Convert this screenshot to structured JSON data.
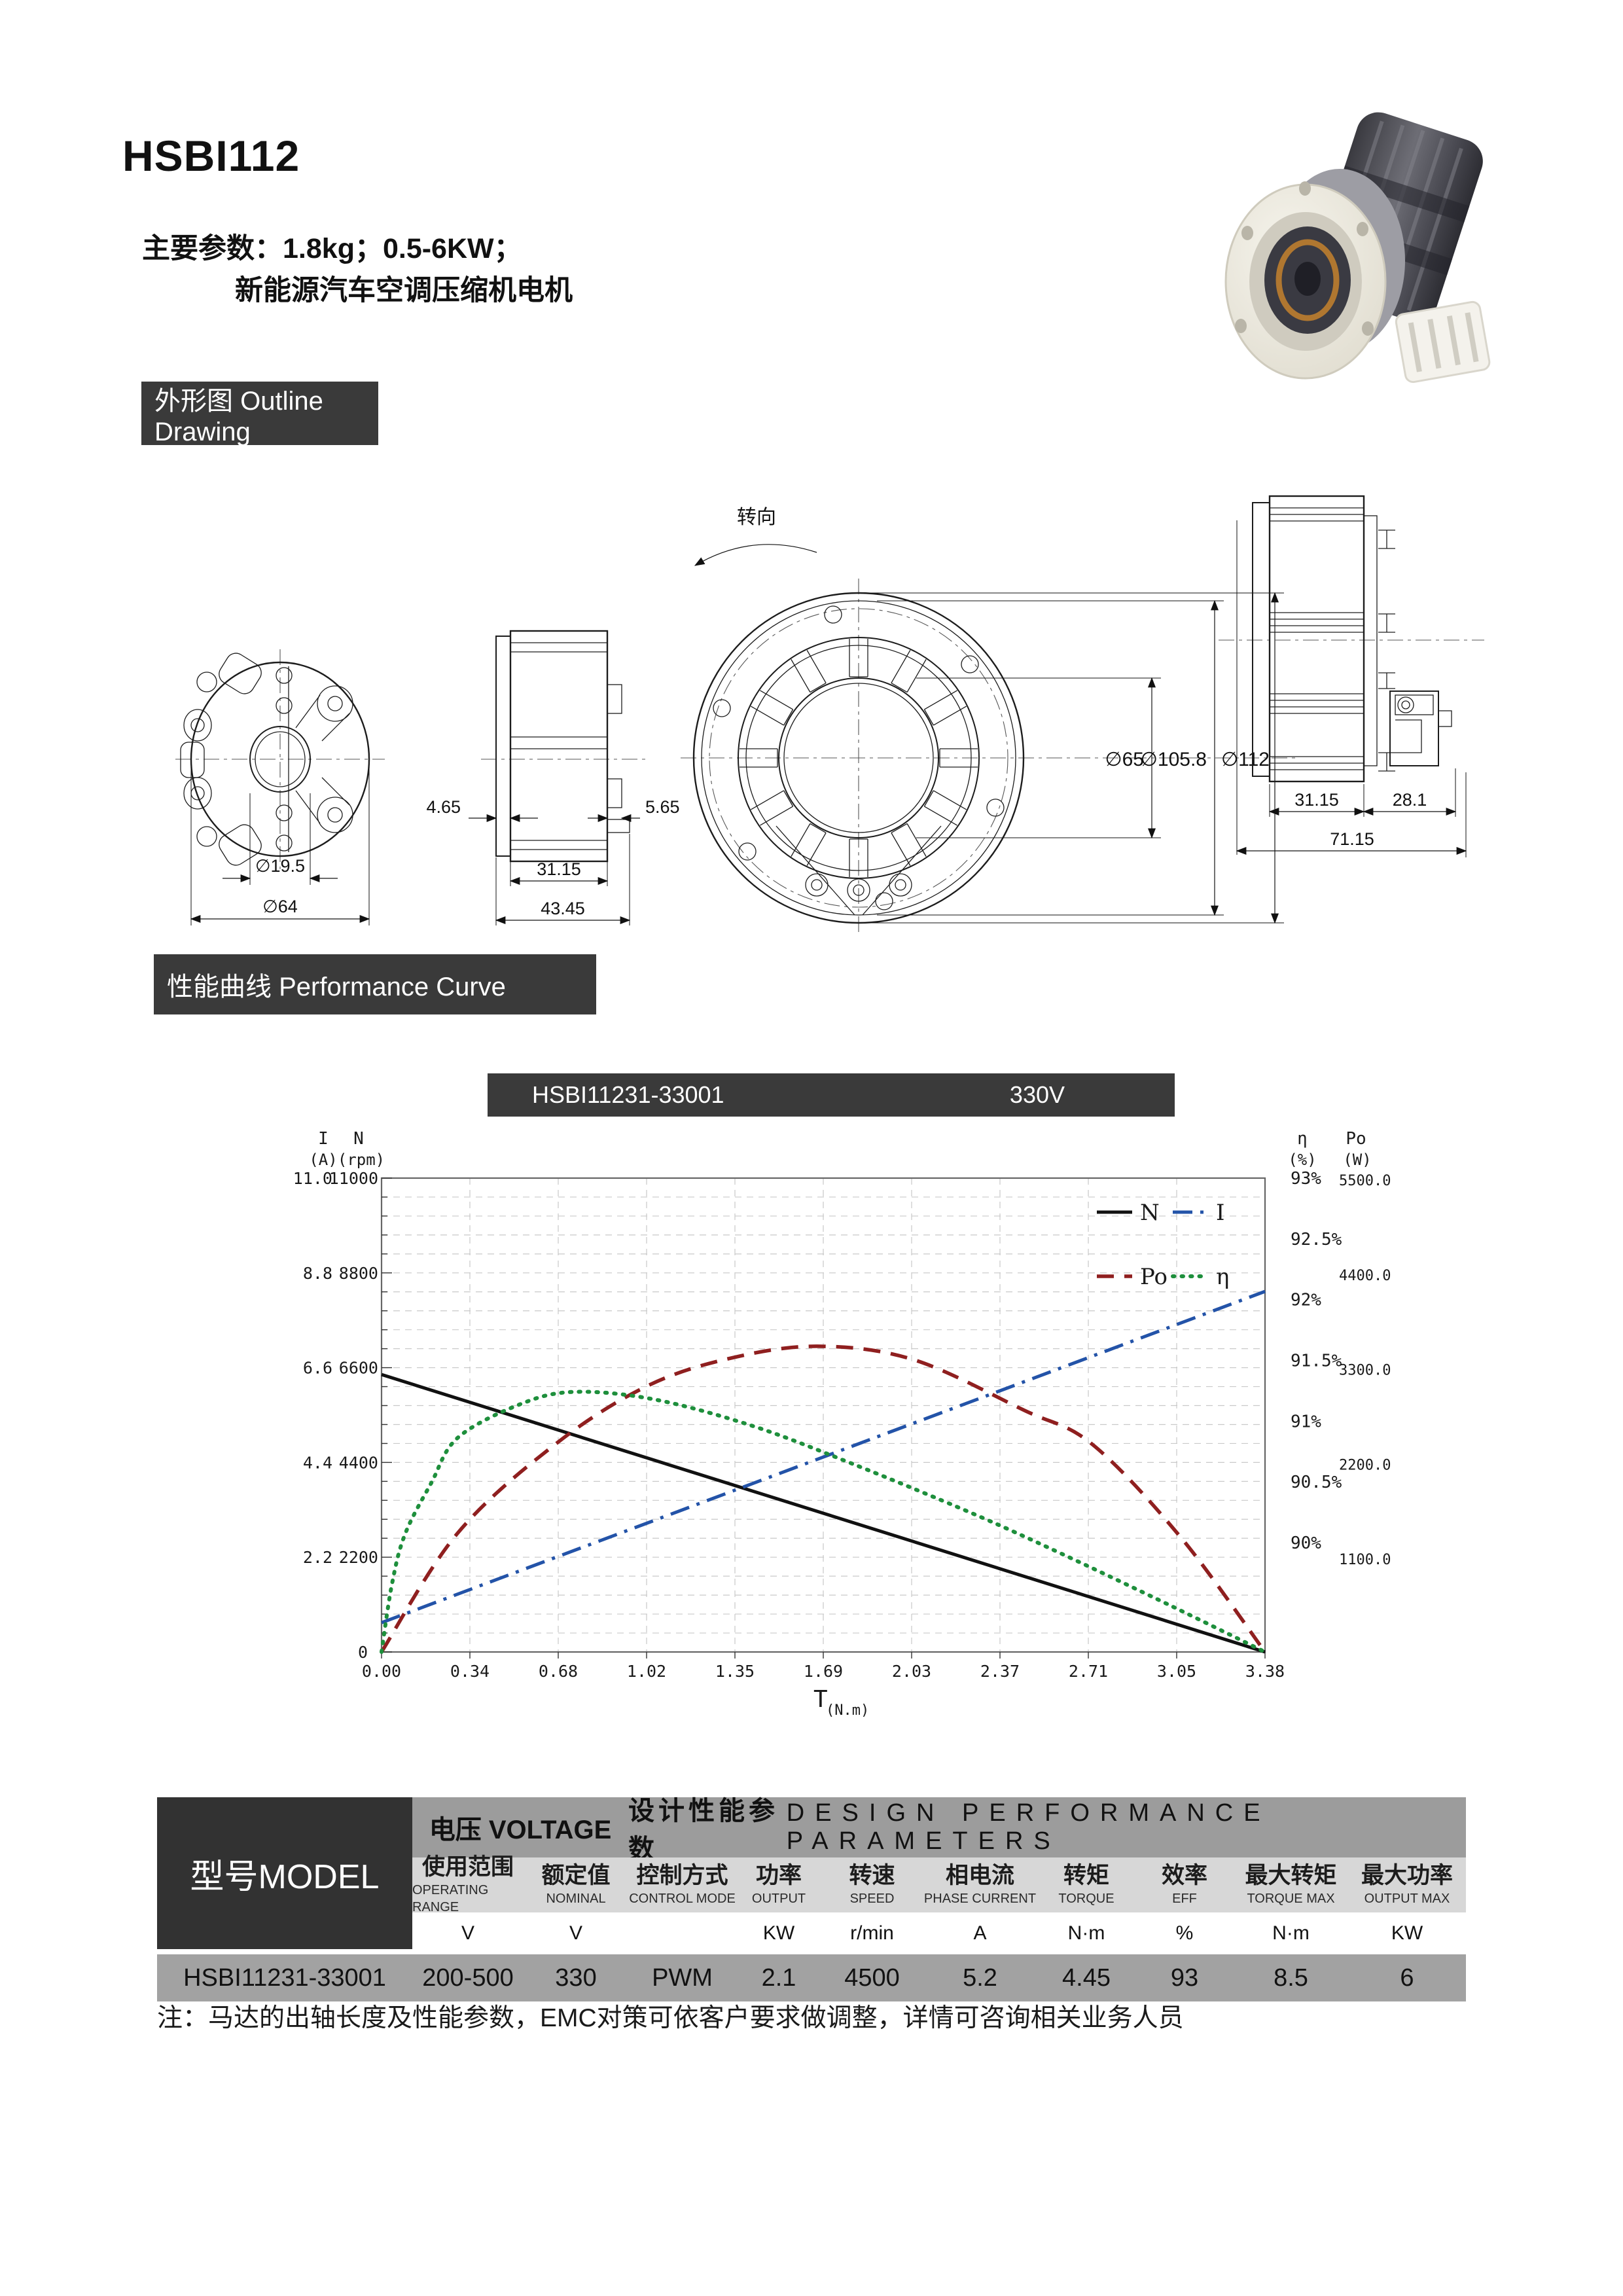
{
  "header": {
    "title": "HSBI112",
    "params_line1": "主要参数：1.8kg；0.5-6KW；",
    "params_line2": "新能源汽车空调压缩机电机"
  },
  "sections": {
    "outline": "外形图 Outline Drawing",
    "performance": "性能曲线 Performance Curve"
  },
  "chart_bar": {
    "model": "HSBI11231-33001",
    "voltage": "330V"
  },
  "drawings": {
    "front": {
      "dim_hole": "∅19.5",
      "dim_outer": "∅64"
    },
    "side": {
      "dim_left": "4.65",
      "dim_right": "5.65",
      "dim_stack": "31.15",
      "dim_total": "43.45"
    },
    "stator": {
      "rotation_label": "转向",
      "dim_bore": "∅65",
      "dim_stator": "∅105.8",
      "dim_housing": "∅112"
    },
    "profile": {
      "dim_stack": "31.15",
      "dim_rear": "28.1",
      "dim_total": "71.15"
    }
  },
  "chart_data": {
    "type": "line",
    "title": "HSBI11231-33001",
    "subtitle": "330V",
    "xlabel_main": "T",
    "xlabel_sub": "(N.m)",
    "xlim": [
      0,
      3.38
    ],
    "x_ticks": [
      "0.00",
      "0.34",
      "0.68",
      "1.02",
      "1.35",
      "1.69",
      "2.03",
      "2.37",
      "2.71",
      "3.05",
      "3.38"
    ],
    "grid": true,
    "legend_position": "top-right-inside",
    "axes": {
      "left_current": {
        "title": "I",
        "unit": "(A)",
        "range": [
          0,
          11
        ],
        "ticks": [
          "11.0",
          "8.8",
          "6.6",
          "4.4",
          "2.2"
        ]
      },
      "left_speed": {
        "title": "N",
        "unit": "(rpm)",
        "range": [
          0,
          11000
        ],
        "ticks": [
          "11000",
          "8800",
          "6600",
          "4400",
          "2200"
        ]
      },
      "zero_label": "0",
      "right_eff": {
        "title": "η",
        "unit": "(%)",
        "range": [
          89.1,
          93
        ],
        "ticks": [
          "93%",
          "92.5%",
          "92%",
          "91.5%",
          "91%",
          "90.5%",
          "90%"
        ]
      },
      "right_power": {
        "title": "Po",
        "unit": "(W)",
        "range": [
          0,
          5500
        ],
        "ticks": [
          "5500.0",
          "4400.0",
          "3300.0",
          "2200.0",
          "1100.0"
        ]
      }
    },
    "series": [
      {
        "name": "N",
        "axis": "left_speed",
        "color": "#111111",
        "style": "solid",
        "points": [
          [
            0,
            6440
          ],
          [
            3.38,
            0
          ]
        ]
      },
      {
        "name": "I",
        "axis": "left_current",
        "color": "#2353a8",
        "style": "dashdot",
        "points": [
          [
            0,
            0.68
          ],
          [
            3.38,
            8.37
          ]
        ]
      },
      {
        "name": "Po",
        "axis": "right_power",
        "color": "#8f1f1f",
        "style": "dashed",
        "points": [
          [
            0,
            0
          ],
          [
            0.29,
            1375
          ],
          [
            0.67,
            2423
          ],
          [
            1.02,
            3092
          ],
          [
            1.35,
            3420
          ],
          [
            1.68,
            3548
          ],
          [
            2.04,
            3388
          ],
          [
            2.46,
            2803
          ],
          [
            2.72,
            2408
          ],
          [
            3.06,
            1322
          ],
          [
            3.38,
            0
          ]
        ]
      },
      {
        "name": "η",
        "axis": "right_eff",
        "color": "#1e8f3c",
        "style": "dotted",
        "points": [
          [
            0,
            89.1
          ],
          [
            0.04,
            89.66
          ],
          [
            0.09,
            90.07
          ],
          [
            0.19,
            90.49
          ],
          [
            0.29,
            90.86
          ],
          [
            0.52,
            91.13
          ],
          [
            0.73,
            91.24
          ],
          [
            1.04,
            91.18
          ],
          [
            1.42,
            90.96
          ],
          [
            1.8,
            90.65
          ],
          [
            2.25,
            90.25
          ],
          [
            2.6,
            89.91
          ],
          [
            3.02,
            89.48
          ],
          [
            3.38,
            89.1
          ]
        ]
      }
    ]
  },
  "table": {
    "model_header": "型号MODEL",
    "group_voltage": "电压 VOLTAGE",
    "group_design_cn": "设计性能参数",
    "group_design_en": "DESIGN PERFORMANCE PARAMETERS",
    "columns": [
      {
        "cn": "使用范围",
        "en": "OPERATING RANGE",
        "unit": "V",
        "value": "200-500"
      },
      {
        "cn": "额定值",
        "en": "NOMINAL",
        "unit": "V",
        "value": "330"
      },
      {
        "cn": "控制方式",
        "en": "CONTROL MODE",
        "unit": "",
        "value": "PWM"
      },
      {
        "cn": "功率",
        "en": "OUTPUT",
        "unit": "KW",
        "value": "2.1"
      },
      {
        "cn": "转速",
        "en": "SPEED",
        "unit": "r/min",
        "value": "4500"
      },
      {
        "cn": "相电流",
        "en": "PHASE CURRENT",
        "unit": "A",
        "value": "5.2"
      },
      {
        "cn": "转矩",
        "en": "TORQUE",
        "unit": "N·m",
        "value": "4.45"
      },
      {
        "cn": "效率",
        "en": "EFF",
        "unit": "%",
        "value": "93"
      },
      {
        "cn": "最大转矩",
        "en": "TORQUE MAX",
        "unit": "N·m",
        "value": "8.5"
      },
      {
        "cn": "最大功率",
        "en": "OUTPUT MAX",
        "unit": "KW",
        "value": "6"
      }
    ],
    "model_value": "HSBI11231-33001"
  },
  "note": "注：马达的出轴长度及性能参数，EMC对策可依客户要求做调整，详情可咨询相关业务人员"
}
